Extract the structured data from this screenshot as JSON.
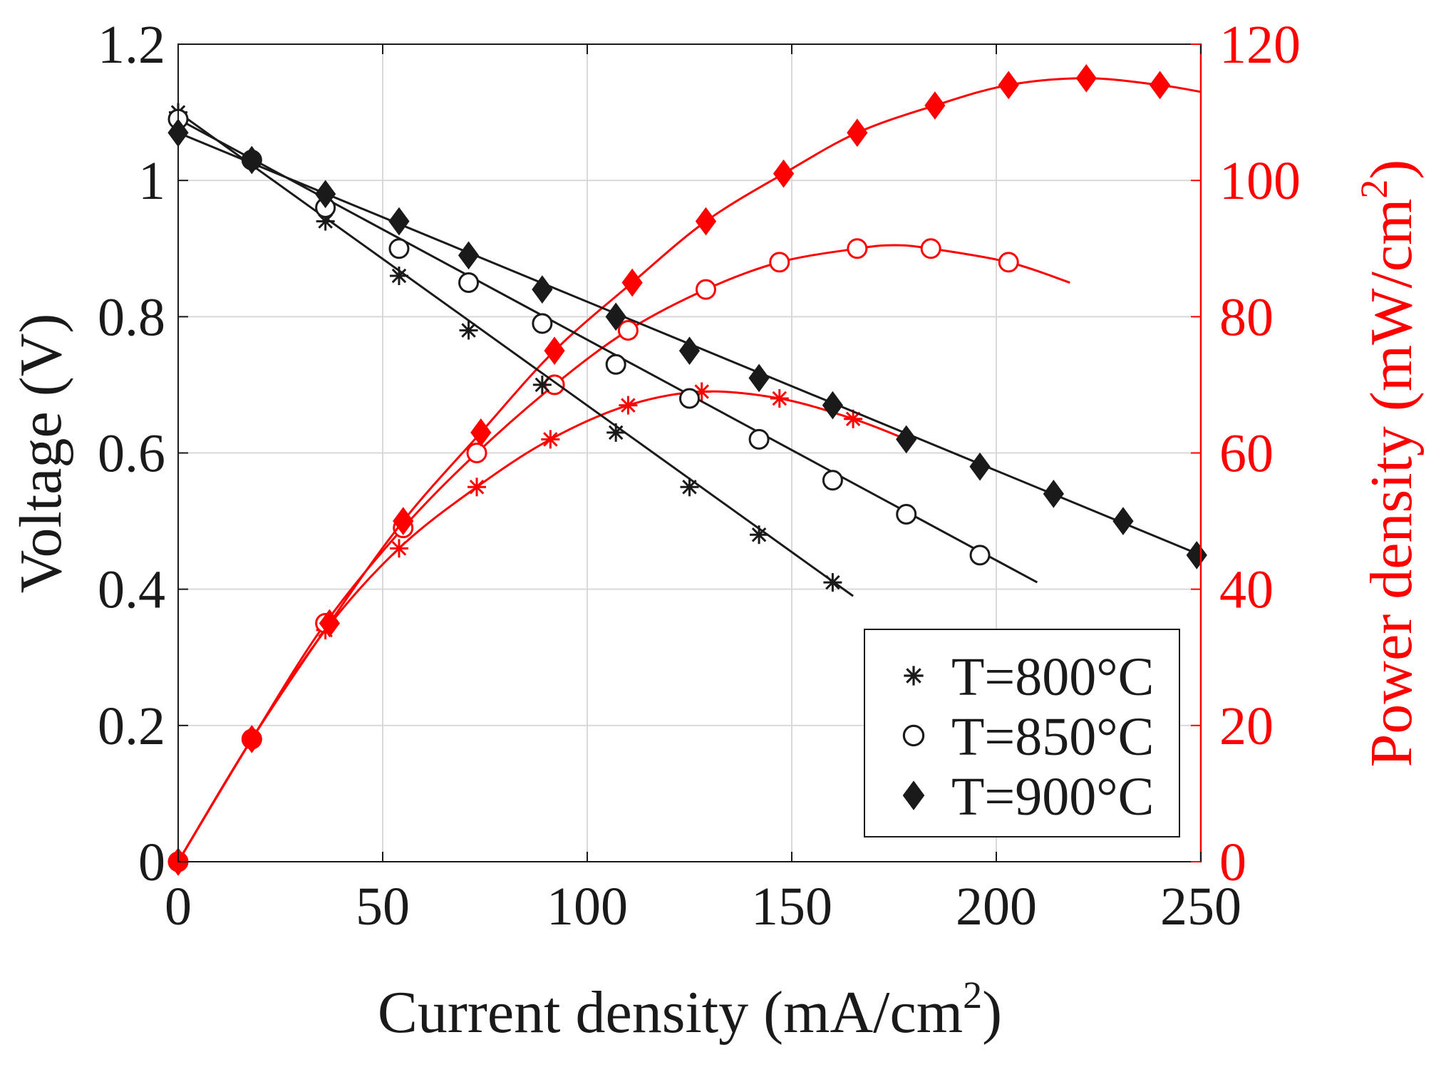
{
  "chart_data": {
    "type": "line",
    "title": "",
    "xlabel": "Current density (mA/cm",
    "xlabel_sup": "2",
    "xlabel_close": ")",
    "ylabel": "Voltage (V)",
    "y2label": "Power density (mW/cm",
    "y2label_sup": "2",
    "y2label_close": ")",
    "xlim": [
      0,
      250
    ],
    "ylim": [
      0,
      1.2
    ],
    "y2lim": [
      0,
      120
    ],
    "xticks": [
      "0",
      "50",
      "100",
      "150",
      "200",
      "250"
    ],
    "yticks": [
      "0",
      "0.2",
      "0.4",
      "0.6",
      "0.8",
      "1",
      "1.2"
    ],
    "y2ticks": [
      "0",
      "20",
      "40",
      "60",
      "80",
      "100",
      "120"
    ],
    "grid": true,
    "legend_position": "bottom-right",
    "colors": {
      "voltage": "#1a1a1a",
      "power": "#ff0000",
      "grid": "#d9d9d9"
    },
    "series": [
      {
        "name": "T=800°C",
        "marker": "asterisk",
        "voltage": {
          "x": [
            0,
            18,
            36,
            54,
            71,
            89,
            107,
            125,
            142,
            160
          ],
          "y": [
            1.1,
            1.03,
            0.94,
            0.86,
            0.78,
            0.7,
            0.63,
            0.55,
            0.48,
            0.41
          ],
          "line_x": [
            0,
            165
          ],
          "line_y": [
            1.1,
            0.39
          ]
        },
        "power": {
          "x": [
            0,
            18,
            36,
            54,
            73,
            91,
            110,
            128,
            147,
            165
          ],
          "y": [
            0,
            18,
            34,
            46,
            55,
            62,
            67,
            69,
            68,
            65
          ],
          "curve_x": [
            0,
            18,
            36,
            54,
            73,
            91,
            110,
            128,
            147,
            165,
            178
          ],
          "curve_y": [
            0,
            18,
            34,
            46,
            55,
            62,
            67,
            69,
            68,
            65,
            62
          ]
        }
      },
      {
        "name": "T=850°C",
        "marker": "circle",
        "voltage": {
          "x": [
            0,
            18,
            36,
            54,
            71,
            89,
            107,
            125,
            142,
            160,
            178,
            196
          ],
          "y": [
            1.09,
            1.03,
            0.96,
            0.9,
            0.85,
            0.79,
            0.73,
            0.68,
            0.62,
            0.56,
            0.51,
            0.45
          ],
          "line_x": [
            0,
            210
          ],
          "line_y": [
            1.09,
            0.41
          ]
        },
        "power": {
          "x": [
            0,
            18,
            36,
            55,
            73,
            92,
            110,
            129,
            147,
            166,
            184,
            203
          ],
          "y": [
            0,
            18,
            35,
            49,
            60,
            70,
            78,
            84,
            88,
            90,
            90,
            88
          ],
          "curve_x": [
            0,
            18,
            36,
            55,
            73,
            92,
            110,
            129,
            147,
            166,
            175,
            184,
            203,
            218
          ],
          "curve_y": [
            0,
            18,
            35,
            49,
            60,
            70,
            78,
            84,
            88,
            90,
            90.5,
            90,
            88,
            85
          ]
        }
      },
      {
        "name": "T=900°C",
        "marker": "diamond",
        "voltage": {
          "x": [
            0,
            18,
            36,
            54,
            71,
            89,
            107,
            125,
            142,
            160,
            178,
            196,
            214,
            231,
            249
          ],
          "y": [
            1.07,
            1.03,
            0.98,
            0.94,
            0.89,
            0.84,
            0.8,
            0.75,
            0.71,
            0.67,
            0.62,
            0.58,
            0.54,
            0.5,
            0.45
          ],
          "line_x": [
            0,
            250
          ],
          "line_y": [
            1.07,
            0.45
          ]
        },
        "power": {
          "x": [
            0,
            18,
            37,
            55,
            74,
            92,
            111,
            129,
            148,
            166,
            185,
            203,
            222,
            240
          ],
          "y": [
            0,
            18,
            35,
            50,
            63,
            75,
            85,
            94,
            101,
            107,
            111,
            114,
            115,
            114
          ],
          "curve_x": [
            0,
            18,
            37,
            55,
            74,
            92,
            111,
            129,
            148,
            166,
            185,
            203,
            222,
            240,
            250
          ],
          "curve_y": [
            0,
            18,
            35,
            50,
            63,
            75,
            85,
            94,
            101,
            107,
            111,
            114,
            115,
            114,
            113
          ]
        }
      }
    ]
  }
}
